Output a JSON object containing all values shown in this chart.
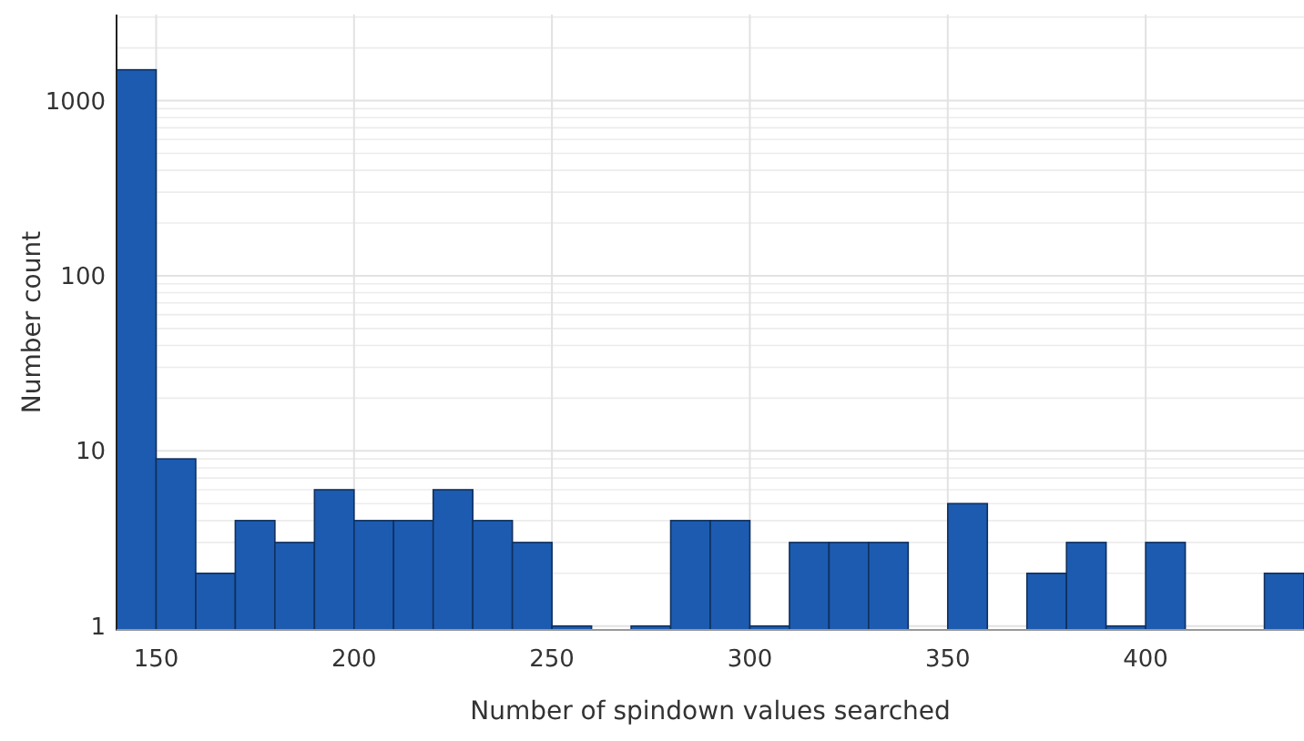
{
  "chart_data": {
    "type": "histogram",
    "xlabel": "Number of spindown values searched",
    "ylabel": "Number count",
    "bins": [
      140,
      150,
      160,
      170,
      180,
      190,
      200,
      210,
      220,
      230,
      240,
      250,
      260,
      270,
      280,
      290,
      300,
      310,
      320,
      330,
      340,
      350,
      360,
      370,
      380,
      390,
      400,
      410,
      420,
      430,
      440
    ],
    "values": [
      1500,
      9,
      2,
      4,
      3,
      6,
      4,
      4,
      6,
      4,
      3,
      1,
      null,
      1,
      4,
      4,
      1,
      3,
      3,
      3,
      null,
      5,
      null,
      2,
      3,
      1,
      3,
      null,
      null,
      2
    ],
    "color": "#1c5bb0",
    "log": "y",
    "grid": true,
    "xlim": [
      140,
      440
    ],
    "xticks": [
      150,
      200,
      250,
      300,
      350,
      400
    ],
    "ylim": [
      0.95,
      3100
    ],
    "yticks": [
      1,
      10,
      100,
      1000
    ]
  }
}
